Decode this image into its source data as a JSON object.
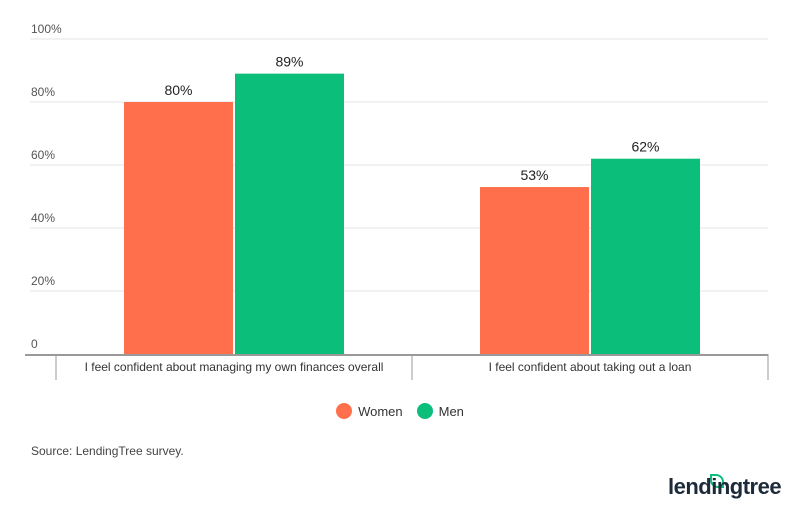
{
  "chart_data": {
    "type": "bar",
    "categories": [
      "I feel confident about managing my own finances overall",
      "I feel confident about taking out a loan"
    ],
    "series": [
      {
        "name": "Women",
        "values": [
          80,
          53
        ],
        "color": "#ff6f4b"
      },
      {
        "name": "Men",
        "values": [
          89,
          62
        ],
        "color": "#0bbf7a"
      }
    ],
    "data_labels": [
      [
        "80%",
        "53%"
      ],
      [
        "89%",
        "62%"
      ]
    ],
    "yticks": [
      "0",
      "20%",
      "40%",
      "60%",
      "80%",
      "100%"
    ],
    "ytick_values": [
      0,
      20,
      40,
      60,
      80,
      100
    ],
    "ylim": [
      0,
      100
    ],
    "grid": true,
    "legend": "bottom-center",
    "title": "",
    "xlabel": "",
    "ylabel": ""
  },
  "source": "Source: LendingTree survey.",
  "logo": "lendingtree"
}
